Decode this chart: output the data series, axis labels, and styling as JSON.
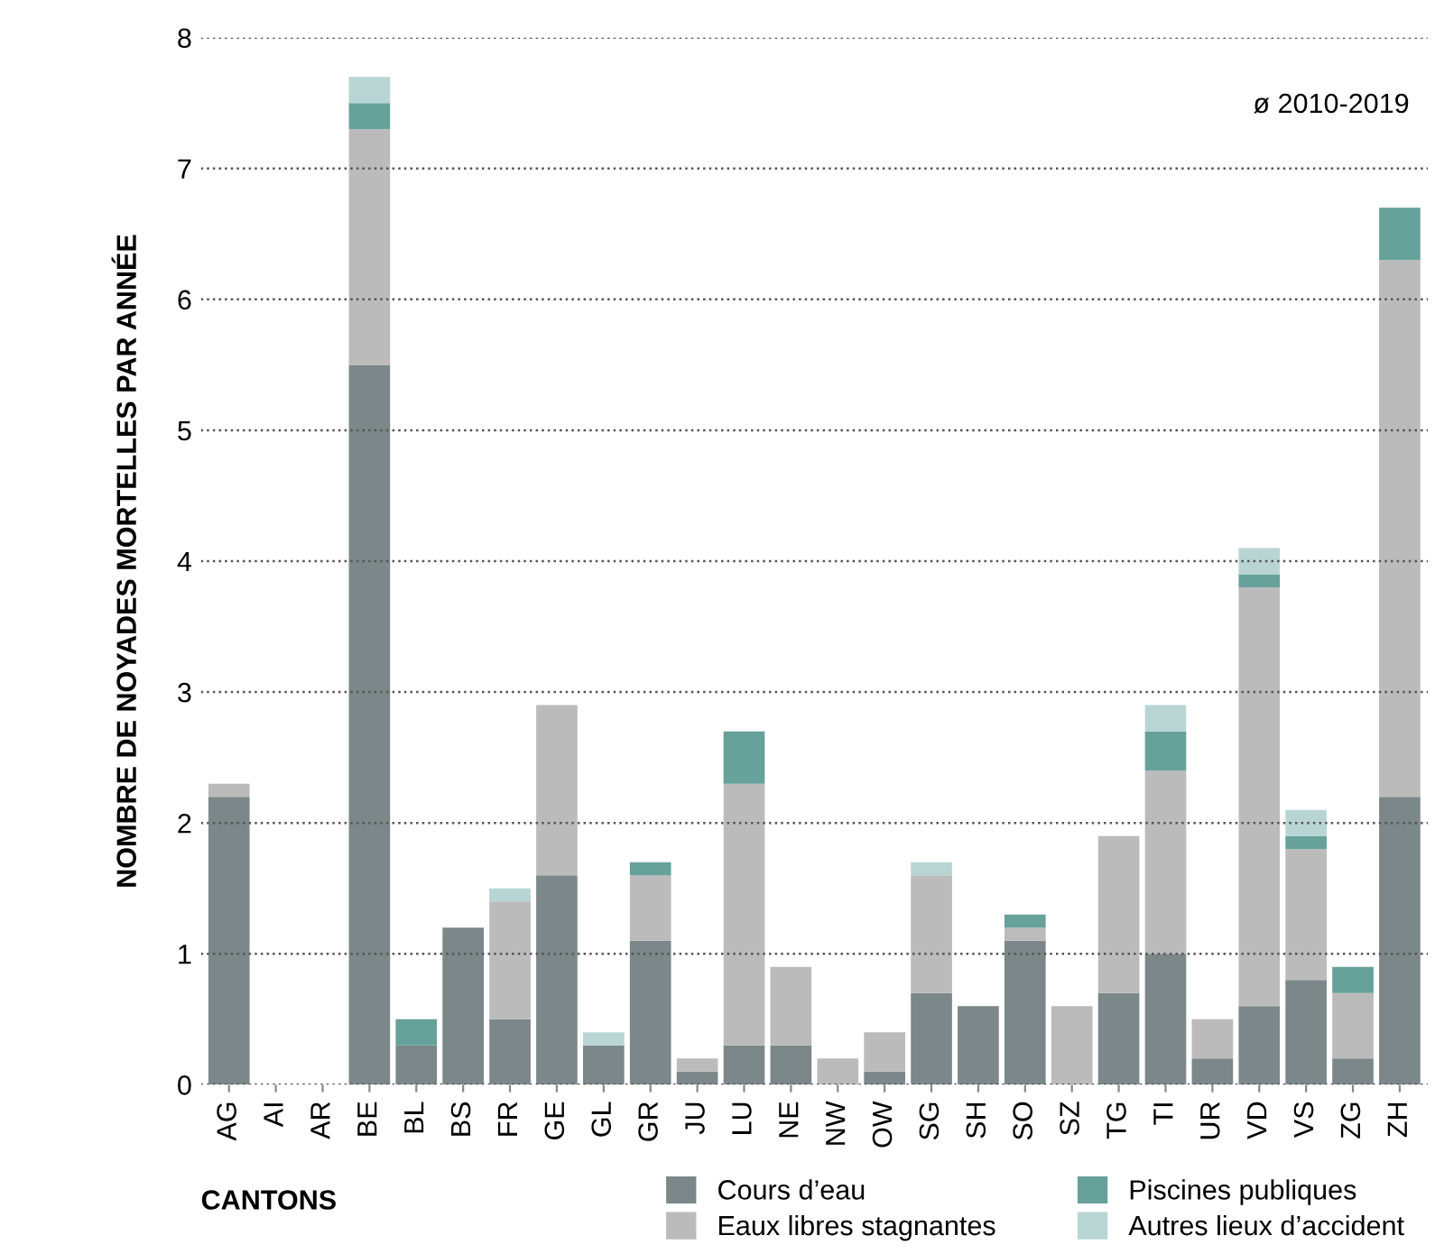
{
  "chart_data": {
    "type": "bar",
    "stacked": true,
    "xlabel": "CANTONS",
    "ylabel": "NOMBRE DE NOYADES MORTELLES PAR ANNÉE",
    "categories": [
      "AG",
      "AI",
      "AR",
      "BE",
      "BL",
      "BS",
      "FR",
      "GE",
      "GL",
      "GR",
      "JU",
      "LU",
      "NE",
      "NW",
      "OW",
      "SG",
      "SH",
      "SO",
      "SZ",
      "TG",
      "TI",
      "UR",
      "VD",
      "VS",
      "ZG",
      "ZH"
    ],
    "series": [
      {
        "name": "Cours d’eau",
        "color": "#7b8788",
        "values": [
          2.2,
          0,
          0,
          5.5,
          0.3,
          1.2,
          0.5,
          1.6,
          0.3,
          1.1,
          0.1,
          0.3,
          0.3,
          0,
          0.1,
          0.7,
          0.6,
          1.1,
          0,
          0.7,
          1.0,
          0.2,
          0.6,
          0.8,
          0.2,
          2.2
        ]
      },
      {
        "name": "Eaux libres stagnantes",
        "color": "#bbbbbb",
        "values": [
          0.1,
          0,
          0,
          1.8,
          0,
          0,
          0.9,
          1.3,
          0,
          0.5,
          0.1,
          2.0,
          0.6,
          0.2,
          0.3,
          0.9,
          0,
          0.1,
          0.6,
          1.2,
          1.4,
          0.3,
          3.2,
          1.0,
          0.5,
          4.1
        ]
      },
      {
        "name": "Piscines publiques",
        "color": "#66a19a",
        "values": [
          0,
          0,
          0,
          0.2,
          0.2,
          0,
          0,
          0,
          0,
          0.1,
          0,
          0.4,
          0,
          0,
          0,
          0,
          0,
          0.1,
          0,
          0,
          0.3,
          0,
          0.1,
          0.1,
          0.2,
          0.4
        ]
      },
      {
        "name": "Autres lieux d’accident",
        "color": "#b8d5d4",
        "values": [
          0,
          0,
          0,
          0.2,
          0,
          0,
          0.1,
          0,
          0.1,
          0,
          0,
          0,
          0,
          0,
          0,
          0.1,
          0,
          0,
          0,
          0,
          0.2,
          0,
          0.2,
          0.2,
          0,
          0
        ]
      }
    ],
    "ylim": [
      0,
      8
    ],
    "yticks": [
      0,
      1,
      2,
      3,
      4,
      5,
      6,
      7,
      8
    ],
    "grid": "y",
    "legend": "bottom",
    "annotations": [
      "ø 2010-2019"
    ]
  }
}
